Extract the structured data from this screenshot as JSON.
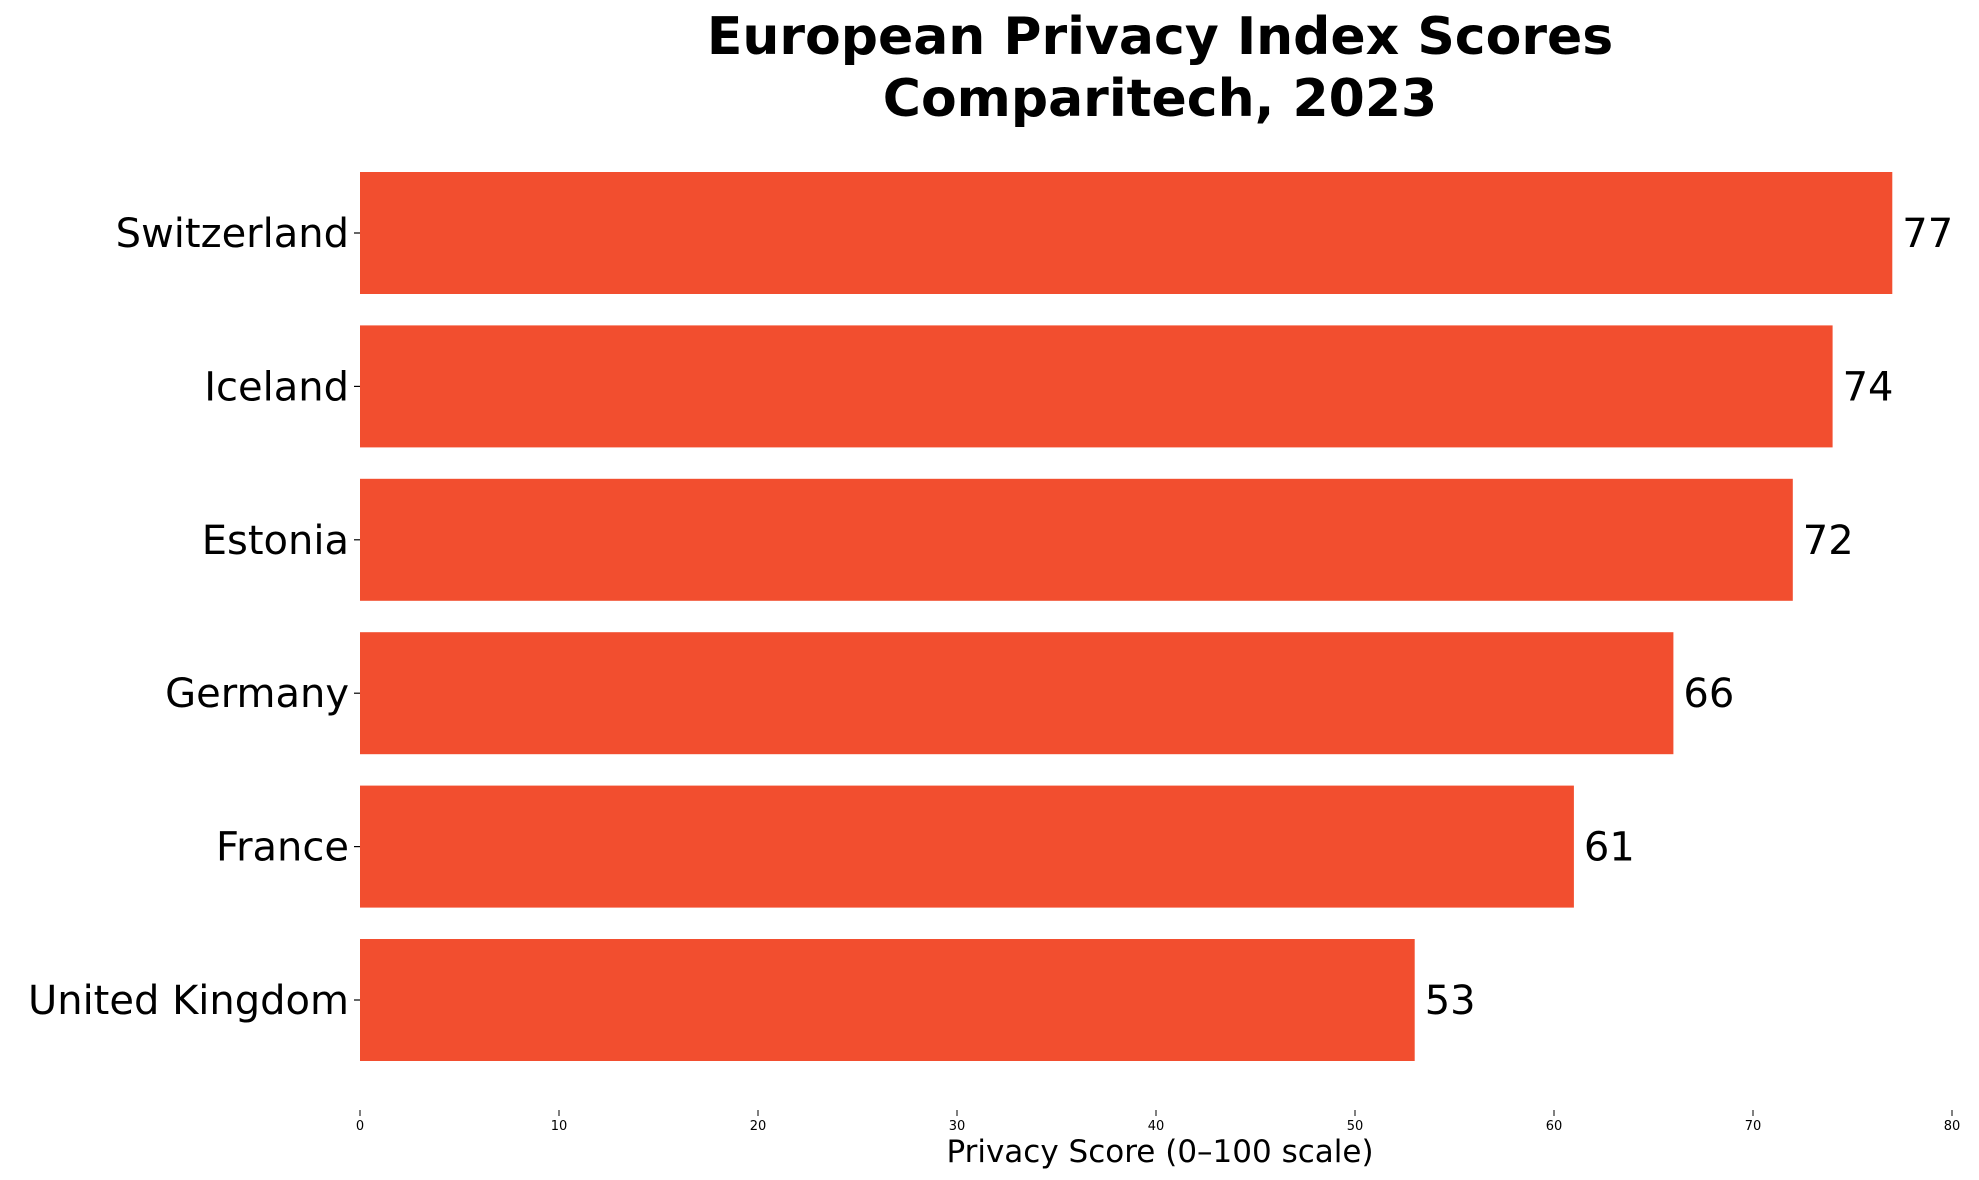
{
  "chart_data": {
    "type": "bar",
    "orientation": "horizontal",
    "title": "European Privacy Index Scores",
    "subtitle": "Comparitech, 2023",
    "categories": [
      "Switzerland",
      "Iceland",
      "Estonia",
      "Germany",
      "France",
      "United Kingdom"
    ],
    "values": [
      77,
      74,
      72,
      66,
      61,
      53
    ],
    "value_labels": [
      "77",
      "74",
      "72",
      "66",
      "61",
      "53"
    ],
    "xlabel": "Privacy Score (0–100 scale)",
    "ylabel": "",
    "xlim": [
      0,
      80
    ],
    "xticks": [
      0,
      10,
      20,
      30,
      40,
      50,
      60,
      70,
      80
    ],
    "xtick_labels": [
      "0",
      "10",
      "20",
      "30",
      "40",
      "50",
      "60",
      "70",
      "80"
    ],
    "bar_color": "#f24e2f",
    "grid": false,
    "legend": "none"
  }
}
